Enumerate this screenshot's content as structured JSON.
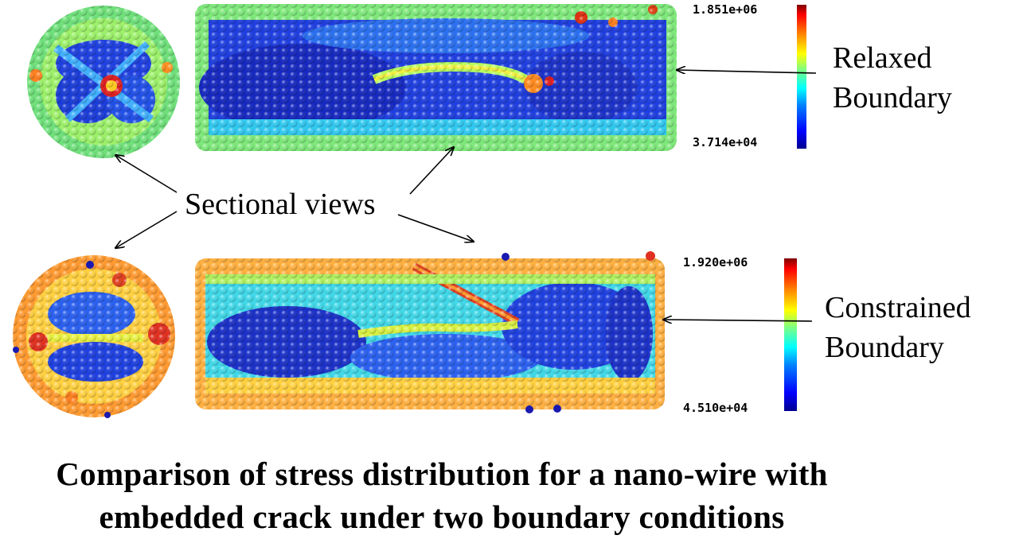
{
  "panels": {
    "relaxed": {
      "label_line1": "Relaxed",
      "label_line2": "Boundary",
      "colorbar_max": "1.851e+06",
      "colorbar_min": "3.714e+04"
    },
    "constrained": {
      "label_line1": "Constrained",
      "label_line2": "Boundary",
      "colorbar_max": "1.920e+06",
      "colorbar_min": "4.510e+04"
    }
  },
  "annotation": {
    "sectional_views": "Sectional views"
  },
  "caption": {
    "line1": "Comparison of stress distribution for a nano-wire with",
    "line2": "embedded crack under two boundary conditions"
  },
  "colormap": [
    "#00008f",
    "#0000ff",
    "#0080ff",
    "#00ffff",
    "#80ff80",
    "#ffff00",
    "#ff8000",
    "#ff0000",
    "#800000"
  ]
}
